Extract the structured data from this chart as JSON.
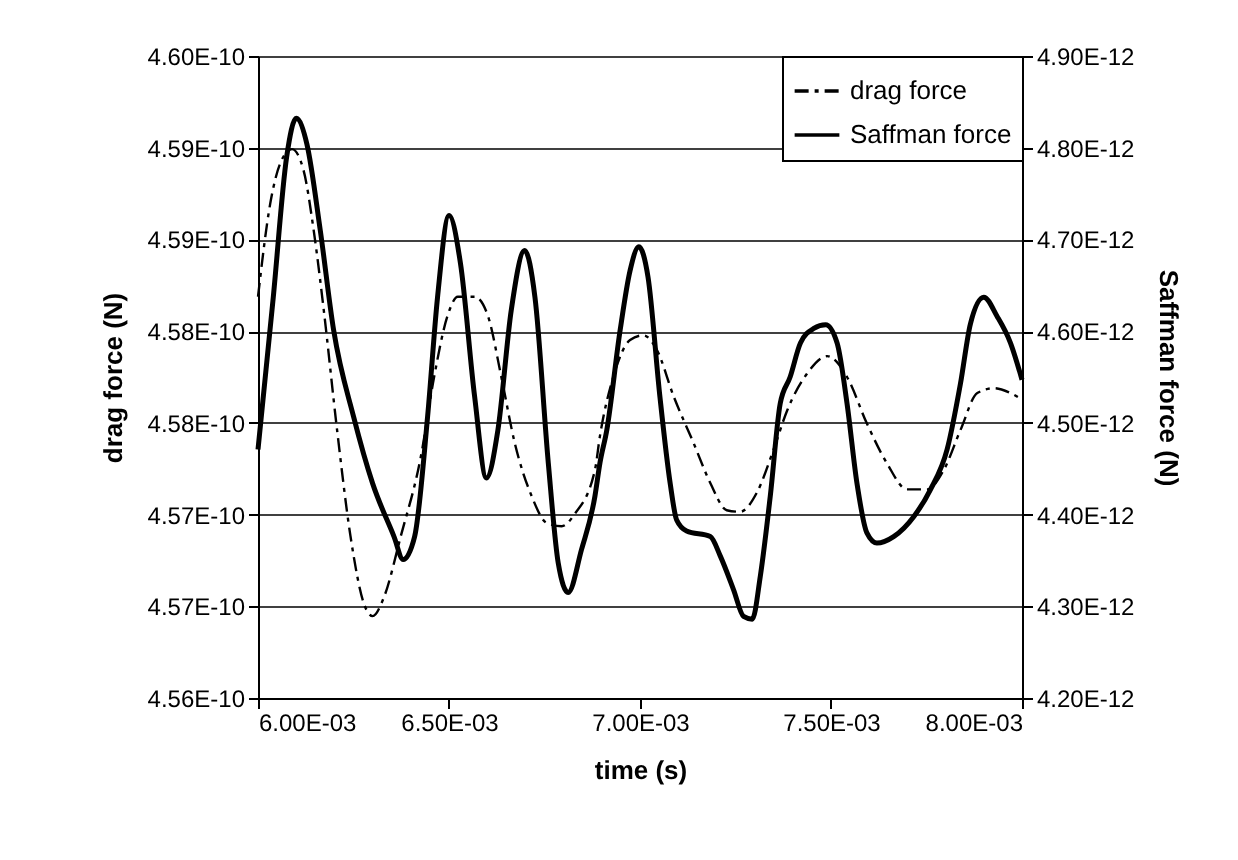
{
  "chart_data": {
    "type": "line",
    "xlabel": "time (s)",
    "ylabel": "drag force (N)",
    "y2label": "Saffman force (N)",
    "xlim": [
      0.006,
      0.008
    ],
    "xticks": [
      {
        "value": 0.006,
        "label": "6.00E-03"
      },
      {
        "value": 0.0065,
        "label": "6.50E-03"
      },
      {
        "value": 0.007,
        "label": "7.00E-03"
      },
      {
        "value": 0.0075,
        "label": "7.50E-03"
      },
      {
        "value": 0.008,
        "label": "8.00E-03"
      }
    ],
    "ylim": [
      4.56e-10,
      4.6e-10
    ],
    "yticks": [
      {
        "value": 4.56e-10,
        "label": "4.56E-10"
      },
      {
        "value": 4.565714e-10,
        "label": "4.57E-10"
      },
      {
        "value": 4.571429e-10,
        "label": "4.57E-10"
      },
      {
        "value": 4.577143e-10,
        "label": "4.58E-10"
      },
      {
        "value": 4.582857e-10,
        "label": "4.58E-10"
      },
      {
        "value": 4.588571e-10,
        "label": "4.59E-10"
      },
      {
        "value": 4.594286e-10,
        "label": "4.59E-10"
      },
      {
        "value": 4.6e-10,
        "label": "4.60E-10"
      }
    ],
    "y2lim": [
      4.2e-12,
      4.9e-12
    ],
    "y2ticks": [
      {
        "value": 4.2e-12,
        "label": "4.20E-12"
      },
      {
        "value": 4.3e-12,
        "label": "4.30E-12"
      },
      {
        "value": 4.4e-12,
        "label": "4.40E-12"
      },
      {
        "value": 4.5e-12,
        "label": "4.50E-12"
      },
      {
        "value": 4.6e-12,
        "label": "4.60E-12"
      },
      {
        "value": 4.7e-12,
        "label": "4.70E-12"
      },
      {
        "value": 4.8e-12,
        "label": "4.80E-12"
      },
      {
        "value": 4.9e-12,
        "label": "4.90E-12"
      }
    ],
    "grid": "y",
    "legend": "top right",
    "series": [
      {
        "name": "drag force",
        "color": "#000000",
        "line_style": "dashed",
        "x": [
          0.006,
          0.006032,
          0.006058,
          0.006089,
          0.006119,
          0.006146,
          0.006172,
          0.006207,
          0.006242,
          0.006277,
          0.0063,
          0.00633,
          0.006374,
          0.006426,
          0.006461,
          0.006496,
          0.006523,
          0.006567,
          0.006602,
          0.006637,
          0.006672,
          0.006716,
          0.006756,
          0.006795,
          0.00683,
          0.006882,
          0.006895,
          0.00693,
          0.006974,
          0.007009,
          0.007044,
          0.007088,
          0.00714,
          0.007184,
          0.007227,
          0.007262,
          0.007306,
          0.00735,
          0.007385,
          0.007437,
          0.00749,
          0.007542,
          0.007594,
          0.007647,
          0.007699,
          0.007752,
          0.007795,
          0.007839,
          0.007883,
          0.007927,
          0.00797,
          0.008
        ],
        "values": [
          4.585e-10,
          4.5908e-10,
          4.5933e-10,
          4.5942e-10,
          4.5929e-10,
          4.5891e-10,
          4.5842e-10,
          4.5767e-10,
          4.5701e-10,
          4.5659e-10,
          4.5651e-10,
          4.5663e-10,
          4.5701e-10,
          4.575e-10,
          4.58e-10,
          4.5838e-10,
          4.585e-10,
          4.585e-10,
          4.5838e-10,
          4.58e-10,
          4.5759e-10,
          4.5726e-10,
          4.5709e-10,
          4.5707e-10,
          4.5715e-10,
          4.5742e-10,
          4.5763e-10,
          4.58e-10,
          4.5823e-10,
          4.5826e-10,
          4.5817e-10,
          4.5788e-10,
          4.5759e-10,
          4.5734e-10,
          4.5717e-10,
          4.5716e-10,
          4.5728e-10,
          4.5755e-10,
          4.5779e-10,
          4.5802e-10,
          4.5813e-10,
          4.58e-10,
          4.5771e-10,
          4.5746e-10,
          4.573e-10,
          4.573e-10,
          4.5742e-10,
          4.5767e-10,
          4.579e-10,
          4.5793e-10,
          4.579e-10,
          4.5786e-10
        ]
      },
      {
        "name": "Saffman force",
        "color": "#000000",
        "line_style": "solid",
        "axis": "y2",
        "x": [
          0.006,
          0.00604,
          0.006075,
          0.0061,
          0.006128,
          0.006163,
          0.006198,
          0.00625,
          0.0063,
          0.006356,
          0.00638,
          0.00641,
          0.006444,
          0.00647,
          0.0065,
          0.00653,
          0.006567,
          0.006598,
          0.006628,
          0.006663,
          0.006698,
          0.006725,
          0.00676,
          0.006786,
          0.006812,
          0.006847,
          0.006882,
          0.006895,
          0.006913,
          0.006948,
          0.006974,
          0.006997,
          0.007021,
          0.007052,
          0.007079,
          0.007096,
          0.007122,
          0.007184,
          0.00721,
          0.007245,
          0.007271,
          0.007294,
          0.007315,
          0.007341,
          0.007367,
          0.007393,
          0.00742,
          0.007455,
          0.007486,
          0.007516,
          0.007542,
          0.007568,
          0.007594,
          0.00762,
          0.007664,
          0.007717,
          0.00776,
          0.007804,
          0.007839,
          0.007865,
          0.0079,
          0.007935,
          0.00797,
          0.008
        ],
        "values": [
          4.471e-12,
          4.637e-12,
          4.79e-12,
          4.832e-12,
          4.804e-12,
          4.71e-12,
          4.601e-12,
          4.507e-12,
          4.434e-12,
          4.376e-12,
          4.351e-12,
          4.376e-12,
          4.507e-12,
          4.637e-12,
          4.726e-12,
          4.674e-12,
          4.529e-12,
          4.44e-12,
          4.492e-12,
          4.623e-12,
          4.688e-12,
          4.637e-12,
          4.456e-12,
          4.347e-12,
          4.315e-12,
          4.362e-12,
          4.42e-12,
          4.456e-12,
          4.492e-12,
          4.601e-12,
          4.666e-12,
          4.692e-12,
          4.659e-12,
          4.529e-12,
          4.434e-12,
          4.394e-12,
          4.382e-12,
          4.376e-12,
          4.355e-12,
          4.318e-12,
          4.289e-12,
          4.286e-12,
          4.333e-12,
          4.42e-12,
          4.521e-12,
          4.55e-12,
          4.587e-12,
          4.603e-12,
          4.607e-12,
          4.587e-12,
          4.521e-12,
          4.434e-12,
          4.38e-12,
          4.369e-12,
          4.376e-12,
          4.398e-12,
          4.427e-12,
          4.471e-12,
          4.543e-12,
          4.608e-12,
          4.637e-12,
          4.616e-12,
          4.587e-12,
          4.547e-12
        ]
      }
    ]
  }
}
